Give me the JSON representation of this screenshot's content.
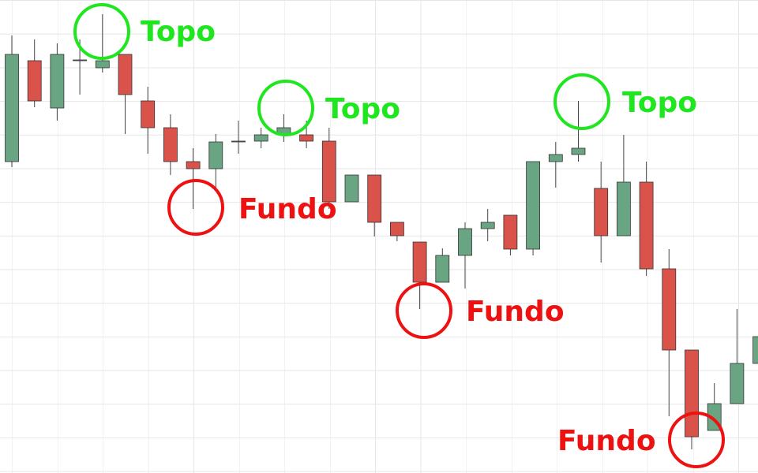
{
  "chart_data": {
    "type": "candlestick",
    "categories": [
      null,
      null,
      null,
      null,
      null,
      null,
      null,
      null,
      null,
      null,
      null,
      null,
      null,
      null,
      null,
      null,
      null,
      null,
      null,
      null,
      null,
      null,
      null,
      null,
      null,
      null,
      null,
      null,
      null,
      null,
      null,
      null,
      null,
      null
    ],
    "open": [
      395,
      523,
      463,
      524,
      514,
      531,
      472,
      438,
      395,
      386,
      421,
      421,
      429,
      429,
      421,
      344,
      378,
      318,
      293,
      242,
      276,
      310,
      327,
      284,
      395,
      404,
      361,
      301,
      369,
      259,
      156,
      54,
      88,
      139
    ],
    "high": [
      555,
      550,
      545,
      550,
      582,
      531,
      490,
      455,
      412,
      430,
      447,
      438,
      455,
      447,
      438,
      378,
      378,
      318,
      293,
      285,
      318,
      335,
      327,
      395,
      420,
      472,
      395,
      429,
      395,
      284,
      156,
      114,
      208,
      190
    ],
    "low": [
      388,
      464,
      447,
      480,
      508,
      430,
      405,
      378,
      335,
      360,
      405,
      412,
      420,
      412,
      335,
      344,
      300,
      294,
      208,
      242,
      234,
      294,
      276,
      276,
      362,
      395,
      267,
      301,
      250,
      72,
      30,
      54,
      88,
      139
    ],
    "close": [
      531,
      472,
      531,
      524,
      523,
      480,
      438,
      395,
      386,
      420,
      421,
      429,
      438,
      421,
      344,
      378,
      318,
      301,
      242,
      276,
      310,
      318,
      284,
      395,
      404,
      412,
      301,
      369,
      259,
      156,
      46,
      88,
      139,
      173
    ],
    "up_color": "#6aa583",
    "down_color": "#d9534a",
    "ylim": [
      0,
      600
    ],
    "grid": true,
    "annotations": [
      {
        "text": "Topo",
        "color": "#1fe61f"
      },
      {
        "text": "Topo",
        "color": "#1fe61f"
      },
      {
        "text": "Topo",
        "color": "#1fe61f"
      },
      {
        "text": "Fundo",
        "color": "#ee1111"
      },
      {
        "text": "Fundo",
        "color": "#ee1111"
      },
      {
        "text": "Fundo",
        "color": "#ee1111"
      }
    ]
  }
}
